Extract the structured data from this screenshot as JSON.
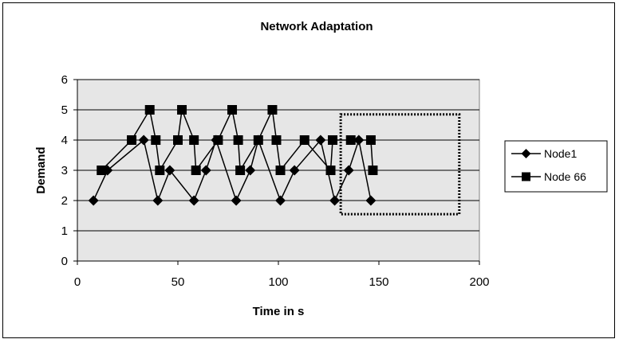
{
  "chart_data": {
    "type": "line",
    "title": "Network Adaptation",
    "xlabel": "Time in s",
    "ylabel": "Demand",
    "xlim": [
      0,
      200
    ],
    "ylim": [
      0,
      6
    ],
    "xticks": [
      "0",
      "50",
      "100",
      "150",
      "200"
    ],
    "yticks": [
      "0",
      "1",
      "2",
      "3",
      "4",
      "5",
      "6"
    ],
    "grid": "horizontal",
    "legend_position": "right",
    "plot_background": "#e6e6e6",
    "series": [
      {
        "name": "Node1",
        "marker": "diamond",
        "color": "#000000",
        "x": [
          8,
          15,
          33,
          40,
          46,
          58,
          64,
          69,
          79,
          86,
          90,
          101,
          108,
          121,
          128,
          135,
          140,
          146
        ],
        "y": [
          2,
          3,
          4,
          2,
          3,
          2,
          3,
          4,
          2,
          3,
          4,
          2,
          3,
          4,
          2,
          3,
          4,
          2
        ]
      },
      {
        "name": "Node 66",
        "marker": "square",
        "color": "#000000",
        "x": [
          12,
          27,
          36,
          39,
          41,
          50,
          52,
          58,
          59,
          70,
          77,
          80,
          81,
          90,
          97,
          99,
          101,
          113,
          126,
          127,
          136,
          146,
          147
        ],
        "y": [
          3,
          4,
          5,
          4,
          3,
          4,
          5,
          4,
          3,
          4,
          5,
          4,
          3,
          4,
          5,
          4,
          3,
          4,
          3,
          4,
          4,
          4,
          3
        ]
      }
    ],
    "annotation": {
      "type": "dotted-rectangle",
      "x": [
        131,
        190
      ],
      "y": [
        1.55,
        4.85
      ]
    }
  }
}
